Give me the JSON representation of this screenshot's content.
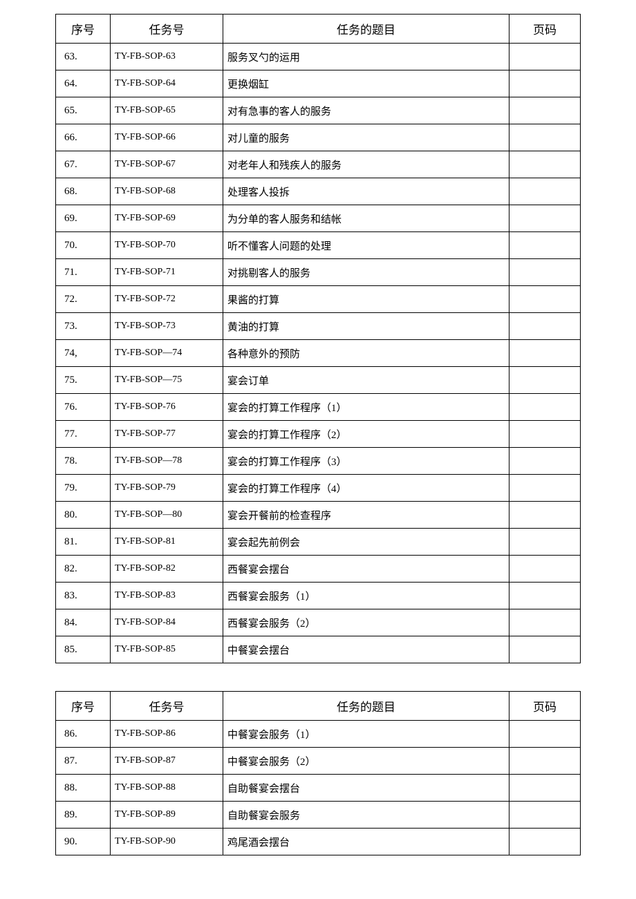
{
  "table_style": {
    "border_color": "#000000",
    "background_color": "#ffffff",
    "text_color": "#000000",
    "header_fontsize": 17,
    "body_fontsize": 15,
    "task_fontsize": 14,
    "col_widths": {
      "seq": 60,
      "task": 150,
      "page": 90
    }
  },
  "headers": {
    "seq": "序号",
    "task": "任务号",
    "title": "任务的题目",
    "page": "页码"
  },
  "tables": [
    {
      "rows": [
        {
          "seq": "63.",
          "task": "TY-FB-SOP-63",
          "title": "服务叉勺的运用",
          "page": ""
        },
        {
          "seq": "64.",
          "task": "TY-FB-SOP-64",
          "title": "更换烟缸",
          "page": ""
        },
        {
          "seq": "65.",
          "task": "TY-FB-SOP-65",
          "title": "对有急事的客人的服务",
          "page": ""
        },
        {
          "seq": "66.",
          "task": "TY-FB-SOP-66",
          "title": "对儿童的服务",
          "page": ""
        },
        {
          "seq": "67.",
          "task": "TY-FB-SOP-67",
          "title": "对老年人和残疾人的服务",
          "page": ""
        },
        {
          "seq": "68.",
          "task": "TY-FB-SOP-68",
          "title": "处理客人投拆",
          "page": ""
        },
        {
          "seq": "69.",
          "task": "TY-FB-SOP-69",
          "title": "为分单的客人服务和结帐",
          "page": ""
        },
        {
          "seq": "70.",
          "task": "TY-FB-SOP-70",
          "title": "听不懂客人问题的处理",
          "page": ""
        },
        {
          "seq": "71.",
          "task": "TY-FB-SOP-71",
          "title": "对挑剔客人的服务",
          "page": ""
        },
        {
          "seq": "72.",
          "task": "TY-FB-SOP-72",
          "title": "果酱的打算",
          "page": ""
        },
        {
          "seq": "73.",
          "task": "TY-FB-SOP-73",
          "title": "黄油的打算",
          "page": ""
        },
        {
          "seq": "74,",
          "task": "TY-FB-SOP—74",
          "title": "各种意外的预防",
          "page": ""
        },
        {
          "seq": "75.",
          "task": "TY-FB-SOP—75",
          "title": "宴会订单",
          "page": ""
        },
        {
          "seq": "76.",
          "task": "TY-FB-SOP-76",
          "title": "宴会的打算工作程序（1）",
          "page": ""
        },
        {
          "seq": "77.",
          "task": "TY-FB-SOP-77",
          "title": "宴会的打算工作程序（2）",
          "page": ""
        },
        {
          "seq": "78.",
          "task": "TY-FB-SOP—78",
          "title": "宴会的打算工作程序（3）",
          "page": ""
        },
        {
          "seq": "79.",
          "task": "TY-FB-SOP-79",
          "title": "宴会的打算工作程序（4）",
          "page": ""
        },
        {
          "seq": "80.",
          "task": "TY-FB-SOP—80",
          "title": "宴会开餐前的检查程序",
          "page": ""
        },
        {
          "seq": "81.",
          "task": "TY-FB-SOP-81",
          "title": "宴会起先前例会",
          "page": ""
        },
        {
          "seq": "82.",
          "task": "TY-FB-SOP-82",
          "title": "西餐宴会摆台",
          "page": ""
        },
        {
          "seq": "83.",
          "task": "TY-FB-SOP-83",
          "title": "西餐宴会服务（1）",
          "page": ""
        },
        {
          "seq": "84.",
          "task": "TY-FB-SOP-84",
          "title": "西餐宴会服务（2）",
          "page": ""
        },
        {
          "seq": "85.",
          "task": "TY-FB-SOP-85",
          "title": "中餐宴会摆台",
          "page": ""
        }
      ]
    },
    {
      "rows": [
        {
          "seq": "86.",
          "task": "TY-FB-SOP-86",
          "title": "中餐宴会服务（1）",
          "page": ""
        },
        {
          "seq": "87.",
          "task": "TY-FB-SOP-87",
          "title": "中餐宴会服务（2）",
          "page": ""
        },
        {
          "seq": "88.",
          "task": "TY-FB-SOP-88",
          "title": "自助餐宴会摆台",
          "page": ""
        },
        {
          "seq": "89.",
          "task": "TY-FB-SOP-89",
          "title": "自助餐宴会服务",
          "page": ""
        },
        {
          "seq": "90.",
          "task": "TY-FB-SOP-90",
          "title": "鸡尾酒会摆台",
          "page": ""
        }
      ]
    }
  ]
}
